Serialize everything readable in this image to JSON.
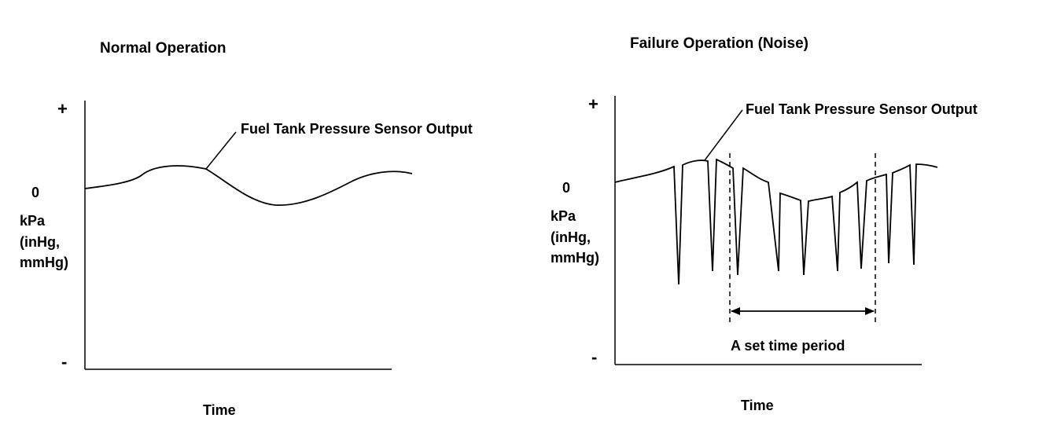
{
  "left_panel": {
    "title": "Normal Operation",
    "y_plus": "+",
    "y_zero": "0",
    "y_minus": "-",
    "unit_line1": "kPa",
    "unit_line2": "(inHg,",
    "unit_line3": "mmHg)",
    "x_label": "Time",
    "signal_label": "Fuel Tank Pressure Sensor Output"
  },
  "right_panel": {
    "title": "Failure Operation (Noise)",
    "y_plus": "+",
    "y_zero": "0",
    "y_minus": "-",
    "unit_line1": "kPa",
    "unit_line2": "(inHg,",
    "unit_line3": "mmHg)",
    "x_label": "Time",
    "signal_label": "Fuel Tank Pressure Sensor Output",
    "period_label": "A set time period"
  }
}
